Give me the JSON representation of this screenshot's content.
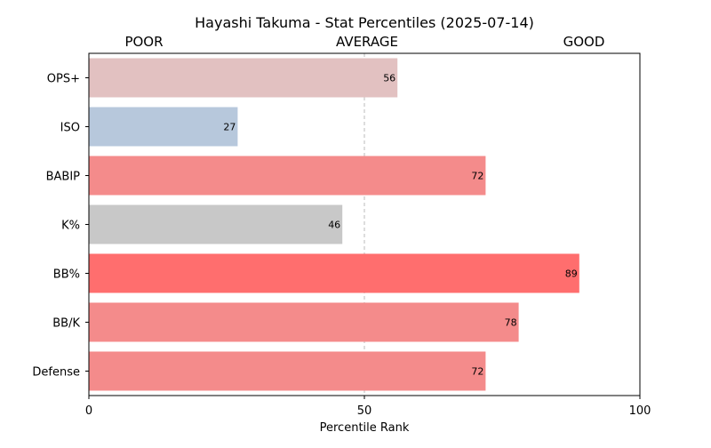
{
  "chart_data": {
    "type": "bar",
    "orientation": "horizontal",
    "title": "Hayashi Takuma - Stat Percentiles (2025-07-14)",
    "xlabel": "Percentile Rank",
    "ylabel": "",
    "xlim": [
      0,
      100
    ],
    "xticks": [
      "0",
      "50",
      "100"
    ],
    "reference_line": 50,
    "zone_labels": [
      "POOR",
      "AVERAGE",
      "GOOD"
    ],
    "categories": [
      "OPS+",
      "ISO",
      "BABIP",
      "K%",
      "BB%",
      "BB/K",
      "Defense"
    ],
    "values": [
      56,
      27,
      72,
      46,
      89,
      78,
      72
    ],
    "colors": [
      "#e2c1c1",
      "#b7c8dc",
      "#f48b8b",
      "#c8c8c8",
      "#ff6e6e",
      "#f48b8b",
      "#f48b8b"
    ],
    "grid": false
  }
}
